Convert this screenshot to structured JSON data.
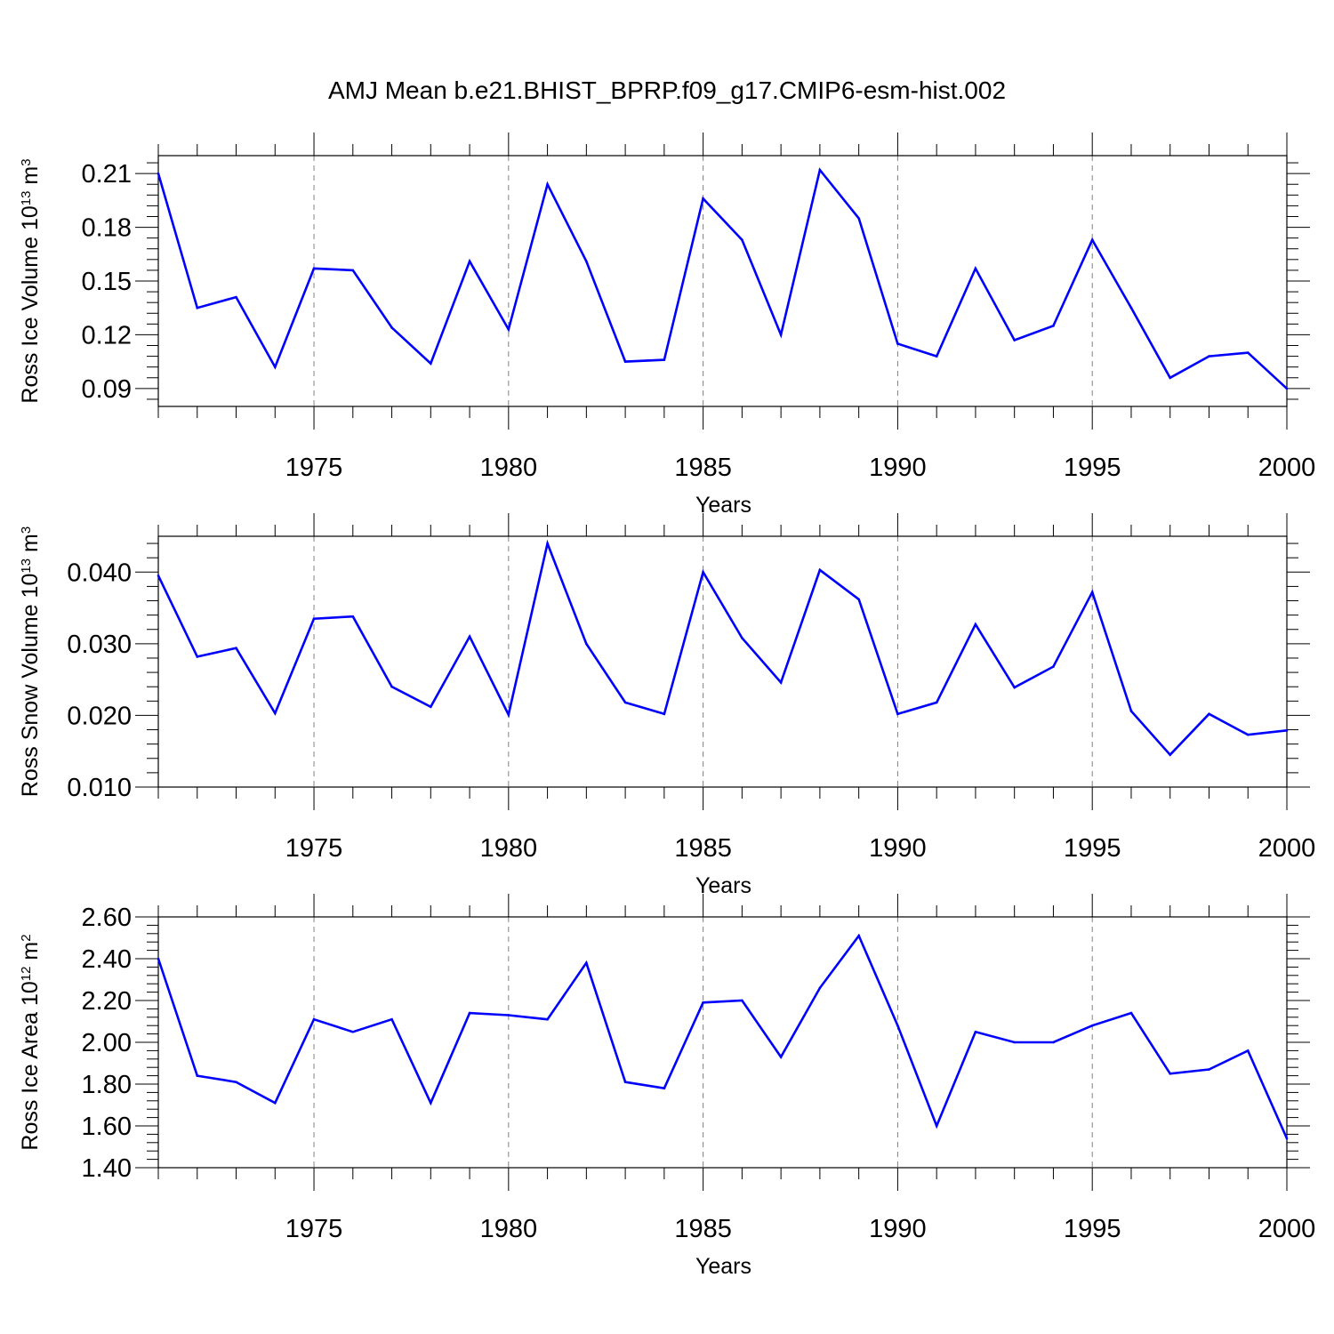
{
  "title": "AMJ Mean b.e21.BHIST_BPRP.f09_g17.CMIP6-esm-hist.002",
  "colors": {
    "line": "#0000ff",
    "axis": "#000000",
    "grid": "#808080"
  },
  "chart_data": [
    {
      "type": "line",
      "ylabel": "Ross Ice Volume 10",
      "ylabel_exp": "13",
      "ylabel_unit": " m",
      "ylabel_unit_exp": "3",
      "xlabel": "Years",
      "xlim": [
        1971,
        2000
      ],
      "ylim": [
        0.08,
        0.22
      ],
      "yticks": [
        0.09,
        0.12,
        0.15,
        0.18,
        0.21
      ],
      "ytick_labels": [
        "0.09",
        "0.12",
        "0.15",
        "0.18",
        "0.21"
      ],
      "xticks": [
        1975,
        1980,
        1985,
        1990,
        1995,
        2000
      ],
      "xtick_labels": [
        "1975",
        "1980",
        "1985",
        "1990",
        "1995",
        "2000"
      ],
      "grid": "vertical dashed at major x ticks",
      "x": [
        1971,
        1972,
        1973,
        1974,
        1975,
        1976,
        1977,
        1978,
        1979,
        1980,
        1981,
        1982,
        1983,
        1984,
        1985,
        1986,
        1987,
        1988,
        1989,
        1990,
        1991,
        1992,
        1993,
        1994,
        1995,
        1996,
        1997,
        1998,
        1999,
        2000
      ],
      "y": [
        0.21,
        0.135,
        0.141,
        0.102,
        0.157,
        0.156,
        0.124,
        0.104,
        0.161,
        0.123,
        0.204,
        0.161,
        0.105,
        0.106,
        0.196,
        0.173,
        0.12,
        0.212,
        0.185,
        0.115,
        0.108,
        0.157,
        0.117,
        0.125,
        0.173,
        0.135,
        0.096,
        0.108,
        0.11,
        0.09
      ]
    },
    {
      "type": "line",
      "ylabel": "Ross Snow Volume 10",
      "ylabel_exp": "13",
      "ylabel_unit": " m",
      "ylabel_unit_exp": "3",
      "xlabel": "Years",
      "xlim": [
        1971,
        2000
      ],
      "ylim": [
        0.01,
        0.045
      ],
      "yticks": [
        0.01,
        0.02,
        0.03,
        0.04
      ],
      "ytick_labels": [
        "0.010",
        "0.020",
        "0.030",
        "0.040"
      ],
      "xticks": [
        1975,
        1980,
        1985,
        1990,
        1995,
        2000
      ],
      "xtick_labels": [
        "1975",
        "1980",
        "1985",
        "1990",
        "1995",
        "2000"
      ],
      "grid": "vertical dashed at major x ticks",
      "x": [
        1971,
        1972,
        1973,
        1974,
        1975,
        1976,
        1977,
        1978,
        1979,
        1980,
        1981,
        1982,
        1983,
        1984,
        1985,
        1986,
        1987,
        1988,
        1989,
        1990,
        1991,
        1992,
        1993,
        1994,
        1995,
        1996,
        1997,
        1998,
        1999,
        2000
      ],
      "y": [
        0.0395,
        0.0282,
        0.0294,
        0.0203,
        0.0335,
        0.0338,
        0.024,
        0.0212,
        0.031,
        0.0201,
        0.044,
        0.03,
        0.0218,
        0.0202,
        0.04,
        0.0308,
        0.0246,
        0.0403,
        0.0362,
        0.0202,
        0.0218,
        0.0327,
        0.0239,
        0.0268,
        0.0372,
        0.0206,
        0.0145,
        0.0202,
        0.0173,
        0.0179
      ]
    },
    {
      "type": "line",
      "ylabel": "Ross Ice Area 10",
      "ylabel_exp": "12",
      "ylabel_unit": " m",
      "ylabel_unit_exp": "2",
      "xlabel": "Years",
      "xlim": [
        1971,
        2000
      ],
      "ylim": [
        1.4,
        2.6
      ],
      "yticks": [
        1.4,
        1.6,
        1.8,
        2.0,
        2.2,
        2.4,
        2.6
      ],
      "ytick_labels": [
        "1.40",
        "1.60",
        "1.80",
        "2.00",
        "2.20",
        "2.40",
        "2.60"
      ],
      "xticks": [
        1975,
        1980,
        1985,
        1990,
        1995,
        2000
      ],
      "xtick_labels": [
        "1975",
        "1980",
        "1985",
        "1990",
        "1995",
        "2000"
      ],
      "grid": "vertical dashed at major x ticks",
      "x": [
        1971,
        1972,
        1973,
        1974,
        1975,
        1976,
        1977,
        1978,
        1979,
        1980,
        1981,
        1982,
        1983,
        1984,
        1985,
        1986,
        1987,
        1988,
        1989,
        1990,
        1991,
        1992,
        1993,
        1994,
        1995,
        1996,
        1997,
        1998,
        1999,
        2000
      ],
      "y": [
        2.4,
        1.84,
        1.81,
        1.71,
        2.11,
        2.05,
        2.11,
        1.71,
        2.14,
        2.13,
        2.11,
        2.38,
        1.81,
        1.78,
        2.19,
        2.2,
        1.93,
        2.26,
        2.51,
        2.08,
        1.6,
        2.05,
        2.0,
        2.0,
        2.08,
        2.14,
        1.85,
        1.87,
        1.96,
        1.54
      ]
    }
  ]
}
